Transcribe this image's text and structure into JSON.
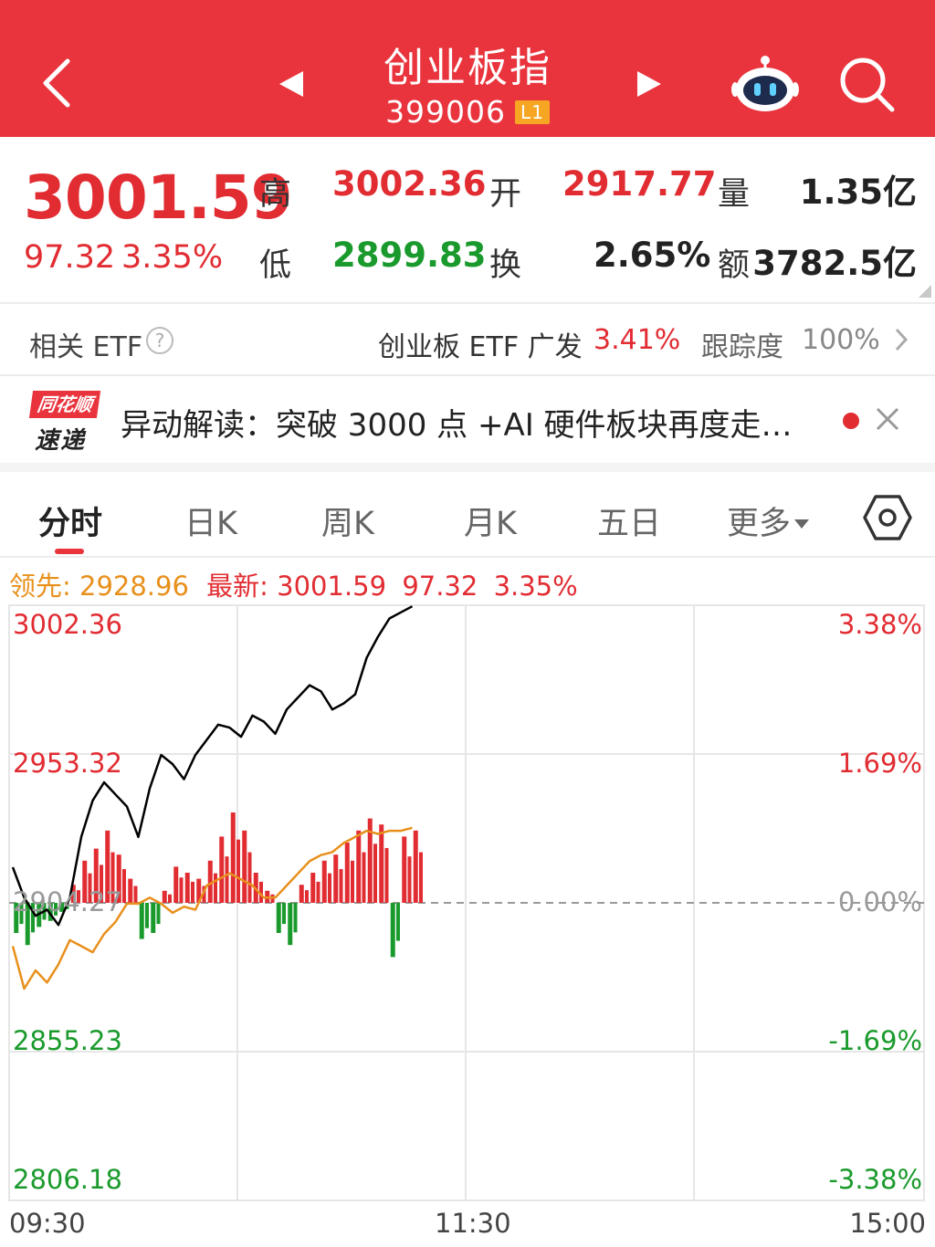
{
  "header": {
    "title": "创业板指",
    "code": "399006",
    "level_badge": "L1"
  },
  "quote": {
    "price": "3001.59",
    "change": "97.32",
    "change_pct": "3.35%",
    "high_label": "高",
    "high": "3002.36",
    "low_label": "低",
    "low": "2899.83",
    "open_label": "开",
    "open": "2917.77",
    "turnover_label": "换",
    "turnover": "2.65%",
    "volume_label": "量",
    "volume": "1.35亿",
    "amount_label": "额",
    "amount": "3782.5亿"
  },
  "etf": {
    "label": "相关 ETF",
    "name": "创业板 ETF 广发",
    "pct": "3.41%",
    "tracking_label": "跟踪度",
    "tracking": "100%"
  },
  "news": {
    "logo_top": "同花顺",
    "logo_bottom": "速递",
    "text": "异动解读：突破 3000 点 +AI 硬件板块再度走…"
  },
  "tabs": [
    {
      "label": "分时"
    },
    {
      "label": "日K"
    },
    {
      "label": "周K"
    },
    {
      "label": "月K"
    },
    {
      "label": "五日"
    },
    {
      "label": "更多"
    }
  ],
  "info": {
    "lead_label": "领先:",
    "lead_value": "2928.96",
    "latest_label": "最新:",
    "latest_value": "3001.59",
    "latest_change": "97.32",
    "latest_pct": "3.35%"
  },
  "colors": {
    "header": "#e9343d",
    "up": "#e12c32",
    "down": "#1a9a2c",
    "lead_line": "#e8901c",
    "price_line": "#000000"
  },
  "chart_data": {
    "type": "line",
    "price_ticks": [
      "3002.36",
      "2953.32",
      "2904.27",
      "2855.23",
      "2806.18"
    ],
    "pct_ticks": [
      "3.38%",
      "1.69%",
      "0.00%",
      "-1.69%",
      "-3.38%"
    ],
    "time_ticks": [
      "09:30",
      "11:30",
      "15:00"
    ],
    "ylim": [
      2806.18,
      3002.36
    ],
    "prev_close": 2904.27,
    "series": [
      {
        "values": [
          2916,
          2906,
          2900,
          2902,
          2897,
          2906,
          2926,
          2938,
          2944,
          2940,
          2936,
          2926,
          2942,
          2953,
          2950,
          2945,
          2953,
          2958,
          2963,
          2962,
          2959,
          2966,
          2964,
          2960,
          2968,
          2972,
          2976,
          2974,
          2968,
          2970,
          2973,
          2985,
          2992,
          2998,
          3000,
          3002
        ]
      },
      {
        "values": [
          2890,
          2876,
          2882,
          2878,
          2884,
          2892,
          2890,
          2888,
          2894,
          2898,
          2904,
          2904,
          2906,
          2904,
          2901,
          2903,
          2902,
          2910,
          2912,
          2914,
          2912,
          2910,
          2906,
          2906,
          2910,
          2914,
          2918,
          2920,
          2921,
          2924,
          2926,
          2928,
          2927,
          2928,
          2928,
          2929
        ]
      },
      {
        "values": [
          -10,
          -14,
          -8,
          -6,
          -3,
          6,
          14,
          18,
          24,
          16,
          8,
          -12,
          -10,
          4,
          12,
          10,
          8,
          14,
          22,
          30,
          24,
          10,
          4,
          -10,
          -14,
          6,
          10,
          14,
          16,
          20,
          24,
          28,
          26,
          -18,
          22,
          24
        ]
      }
    ]
  }
}
